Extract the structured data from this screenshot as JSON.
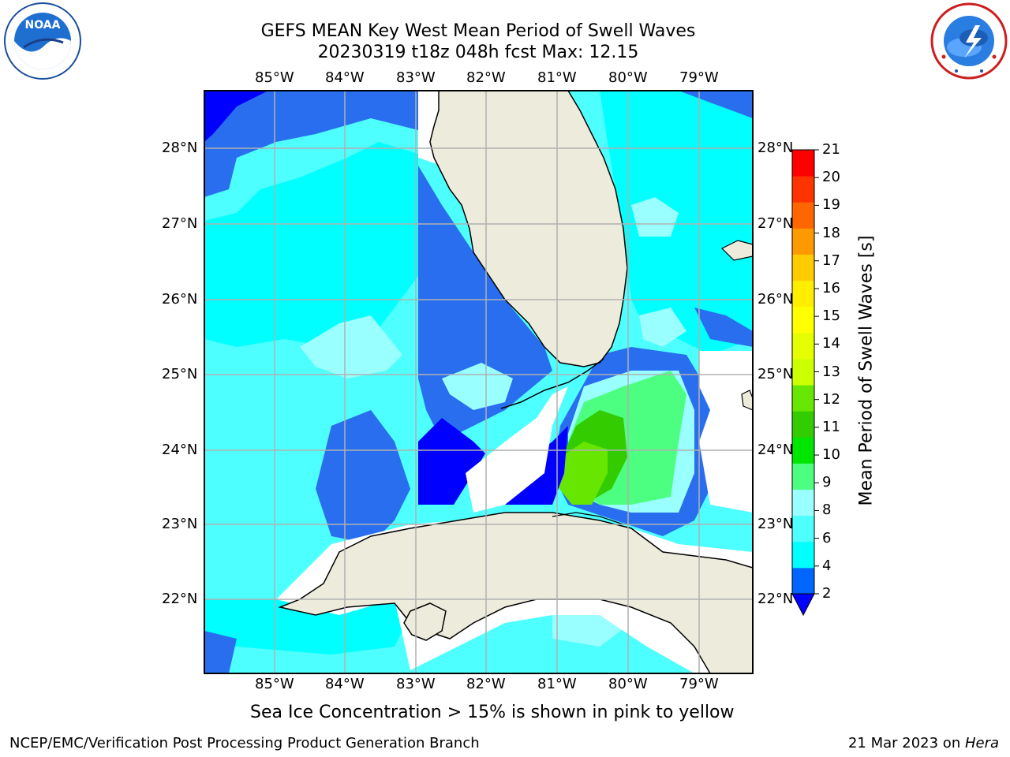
{
  "title": {
    "line1": "GEFS MEAN Key West Mean Period of Swell Waves",
    "line2": "20230319 t18z 048h fcst   Max: 12.15"
  },
  "logos": {
    "left": {
      "name": "NOAA",
      "arc_text": "NATIONAL OCEANIC AND ATMOSPHERIC ADMINISTRATION",
      "bottom_text": "U.S. DEPARTMENT OF COMMERCE"
    },
    "right": {
      "arc_text": "NATIONAL WEATHER SERVICE"
    }
  },
  "map": {
    "lon_labels": [
      "85°W",
      "84°W",
      "83°W",
      "82°W",
      "81°W",
      "80°W",
      "79°W"
    ],
    "lat_labels": [
      "28°N",
      "27°N",
      "26°N",
      "25°N",
      "24°N",
      "23°N",
      "22°N"
    ]
  },
  "colorbar": {
    "title": "Mean Period of Swell Waves [s]",
    "ticks": [
      "2",
      "4",
      "6",
      "8",
      "9",
      "10",
      "11",
      "12",
      "13",
      "14",
      "15",
      "16",
      "17",
      "18",
      "19",
      "20",
      "21"
    ],
    "colors": [
      "#0066ff",
      "#00ffff",
      "#4dffff",
      "#99ffff",
      "#4dff80",
      "#00e600",
      "#33cc00",
      "#66e600",
      "#ccff00",
      "#e6ff00",
      "#ffff00",
      "#ffee00",
      "#ffcc00",
      "#ff9900",
      "#ff6600",
      "#ff3300",
      "#ff0000"
    ],
    "below_color": "#0000ff"
  },
  "field_colors": {
    "land": "#edecdc",
    "dark_blue": "#0000ff",
    "blue": "#2a6ef0",
    "cyan": "#00ffff",
    "light_cyan": "#4dffff",
    "pale_cyan": "#99ffff",
    "green": "#4dff80",
    "bright_green": "#33cc00",
    "lime": "#66e600"
  },
  "caption": "Sea Ice Concentration > 15% is shown in pink to yellow",
  "footer": {
    "left": "NCEP/EMC/Verification Post Processing Product Generation Branch",
    "right_date": "21 Mar 2023 on ",
    "right_host": "Hera"
  }
}
